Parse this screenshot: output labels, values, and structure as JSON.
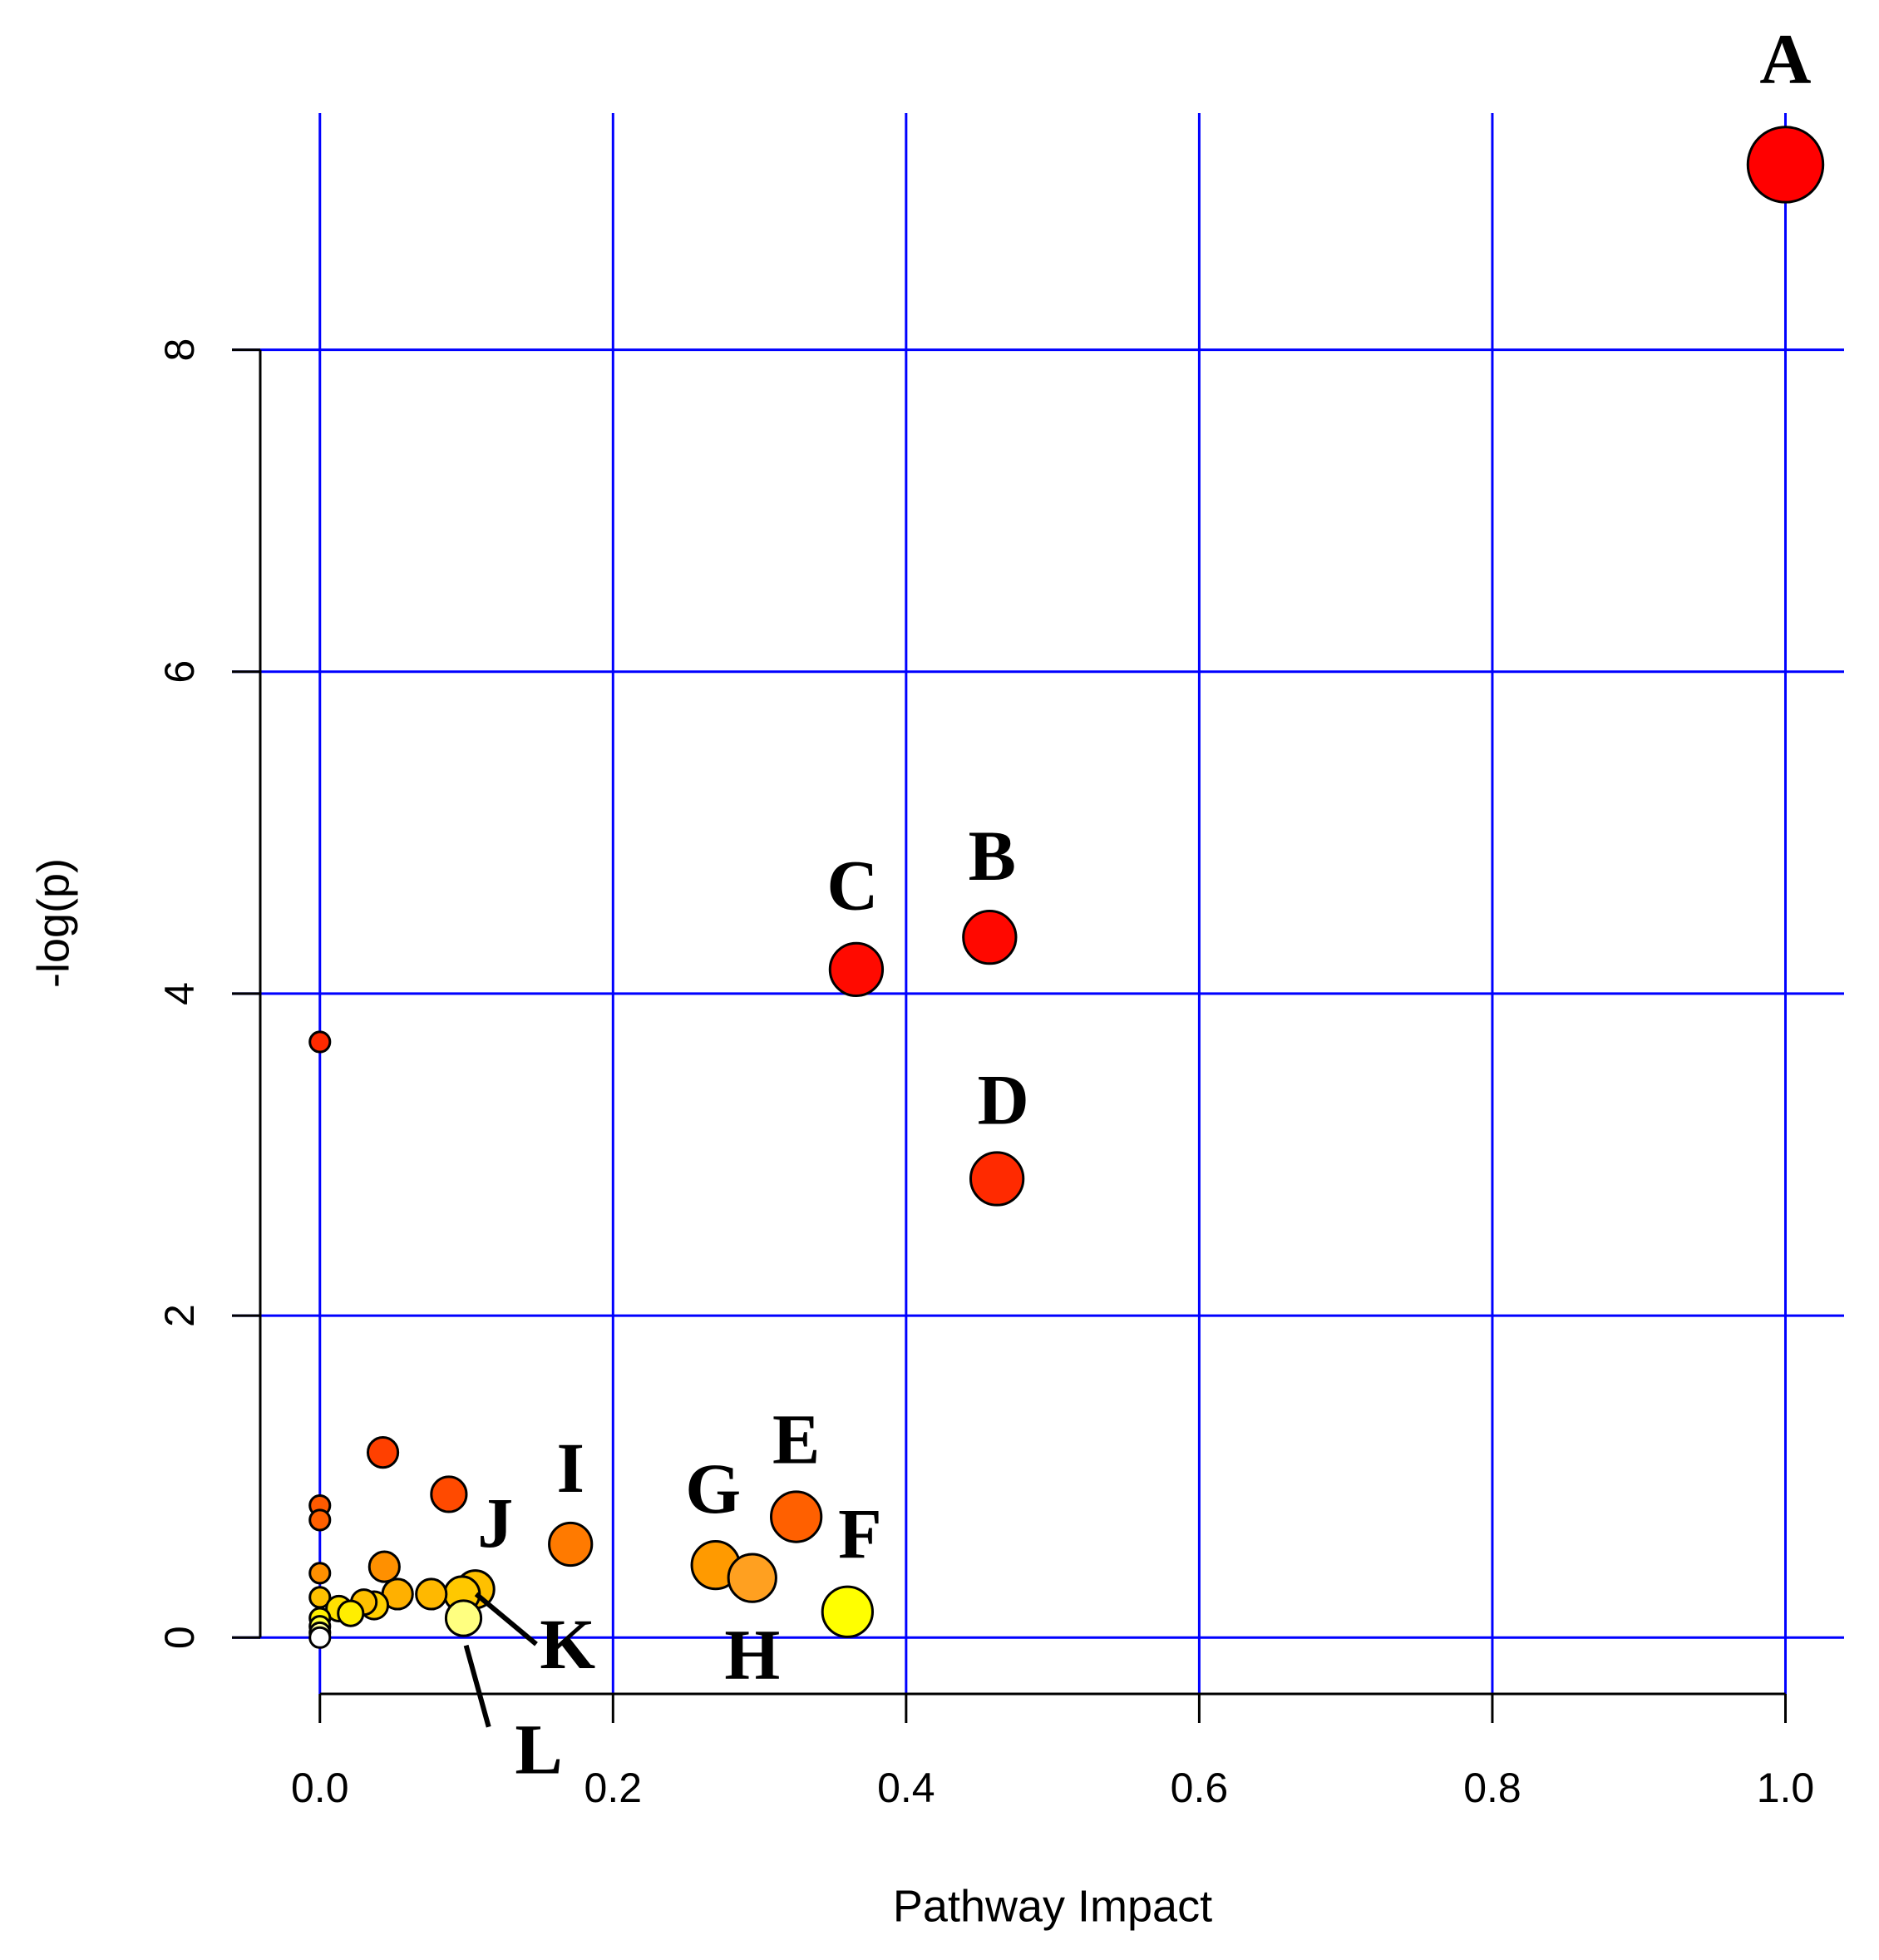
{
  "chart_data": {
    "type": "scatter",
    "x_label": "Pathway Impact",
    "y_label": "-log(p)",
    "xlim": [
      -0.06,
      1.04
    ],
    "ylim": [
      -0.35,
      9.47
    ],
    "xticks": [
      {
        "value": 0,
        "label": "0.0"
      },
      0.2,
      0.4,
      0.6,
      0.8,
      {
        "value": 1,
        "label": "1.0"
      }
    ],
    "yticks": [
      0,
      2,
      4,
      6,
      8
    ],
    "grid": true,
    "grid_color": "#0000ff",
    "series": [
      {
        "x": [
          1.0,
          0.457,
          0.366,
          0.462,
          0.325,
          0.36,
          0.27,
          0.295,
          0.171,
          0.106,
          0.097,
          0.098,
          0,
          0.043,
          0.088,
          0,
          0,
          0,
          0.044,
          0,
          0.053,
          0.076,
          0.037,
          0.03,
          0.013,
          0.021,
          0,
          0,
          0,
          0
        ],
        "values": [
          9.15,
          4.35,
          4.15,
          2.85,
          0.75,
          0.16,
          0.45,
          0.37,
          0.58,
          0.3,
          0.27,
          0.12,
          3.7,
          1.15,
          0.89,
          0.82,
          0.73,
          0.4,
          0.44,
          0.25,
          0.27,
          0.27,
          0.2,
          0.22,
          0.18,
          0.15,
          0.12,
          0.07,
          0.03,
          0
        ],
        "sizes": [
          30,
          21,
          21,
          21,
          20,
          20,
          19,
          19,
          17,
          15,
          14,
          14,
          8,
          12,
          14,
          8,
          8,
          8,
          12,
          8,
          12,
          12,
          11,
          10,
          10,
          10,
          8,
          8,
          8,
          8
        ],
        "colors": [
          "#ff0000",
          "#ff0800",
          "#ff0a00",
          "#ff2a00",
          "#ff6000",
          "#ffff00",
          "#ff9a00",
          "#ffa020",
          "#ff7a00",
          "#ffc000",
          "#ffc800",
          "#ffff80",
          "#ff2a00",
          "#ff4000",
          "#ff4a00",
          "#ff5a00",
          "#ff6000",
          "#ff9000",
          "#ff9000",
          "#ffc000",
          "#ffb000",
          "#ffb800",
          "#ffd000",
          "#ffc000",
          "#ffe000",
          "#ffee00",
          "#fff000",
          "#ffff40",
          "#ffffa0",
          "#ffffff"
        ],
        "labels": [
          "A",
          "B",
          "C",
          "D",
          "E",
          "F",
          "G",
          "H",
          "I",
          "J",
          "K",
          "L",
          null,
          null,
          null,
          null,
          null,
          null,
          null,
          null,
          null,
          null,
          null,
          null,
          null,
          null,
          null,
          null,
          null,
          null
        ]
      }
    ]
  }
}
